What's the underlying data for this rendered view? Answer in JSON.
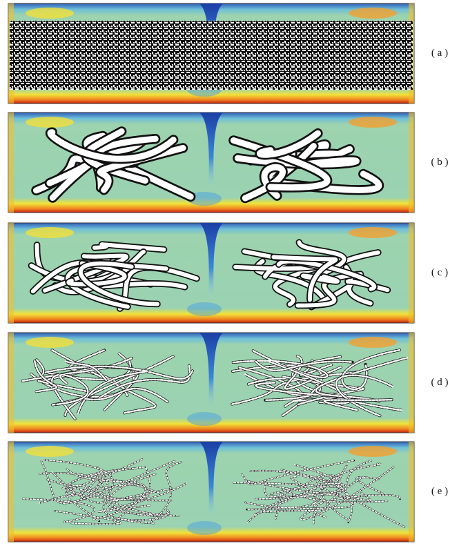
{
  "panels": [
    {
      "label": "( a )"
    },
    {
      "label": "( b )"
    },
    {
      "label": "( c )"
    },
    {
      "label": "( d )"
    },
    {
      "label": "( e )"
    }
  ]
}
